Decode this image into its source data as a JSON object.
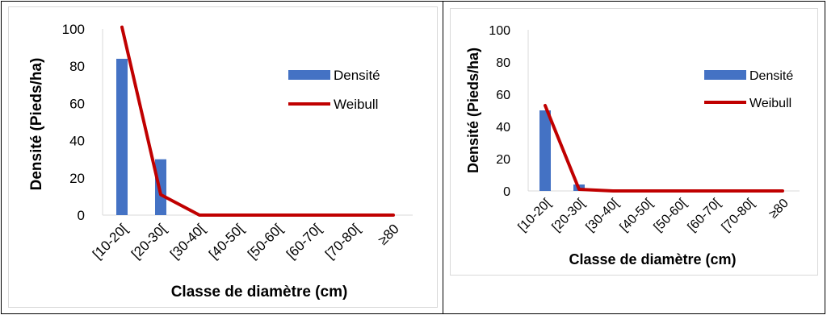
{
  "chart_data": [
    {
      "type": "bar",
      "categories": [
        "[10-20[",
        "[20-30[",
        "[30-40[",
        "[40-50[",
        "[50-60[",
        "[60-70[",
        "[70-80[",
        "≥80"
      ],
      "series": [
        {
          "name": "Densité",
          "kind": "bar",
          "values": [
            84,
            30,
            0,
            0,
            0,
            0,
            0,
            0
          ],
          "color": "#4472c4"
        },
        {
          "name": "Weibull",
          "kind": "line",
          "values": [
            101,
            11,
            0,
            0,
            0,
            0,
            0,
            0
          ],
          "color": "#c00000"
        }
      ],
      "xlabel": "Classe de diamètre (cm)",
      "ylabel": "Densité (Pieds/ha)",
      "ylim": [
        0,
        100
      ],
      "yticks": [
        0,
        20,
        40,
        60,
        80,
        100
      ],
      "grid": false,
      "legend": "right"
    },
    {
      "type": "bar",
      "categories": [
        "[10-20[",
        "[20-30[",
        "[30-40[",
        "[40-50[",
        "[50-60[",
        "[60-70[",
        "[70-80[",
        "≥80"
      ],
      "series": [
        {
          "name": "Densité",
          "kind": "bar",
          "values": [
            50,
            4,
            0,
            0,
            0,
            0,
            0,
            0
          ],
          "color": "#4472c4"
        },
        {
          "name": "Weibull",
          "kind": "line",
          "values": [
            53,
            1,
            0,
            0,
            0,
            0,
            0,
            0
          ],
          "color": "#c00000"
        }
      ],
      "xlabel": "Classe de diamètre (cm)",
      "ylabel": "Densité (Pieds/ha)",
      "ylim": [
        0,
        100
      ],
      "yticks": [
        0,
        20,
        40,
        60,
        80,
        100
      ],
      "grid": false,
      "legend": "right"
    }
  ]
}
